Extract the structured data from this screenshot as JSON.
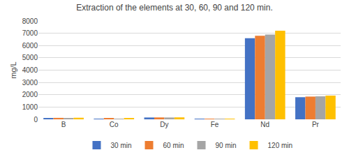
{
  "chart_data": {
    "type": "bar",
    "title": "Extraction of the elements at 30, 60, 90 and 120 min.",
    "categories": [
      "B",
      "Co",
      "Dy",
      "Fe",
      "Nd",
      "Pr"
    ],
    "series": [
      {
        "name": "30 min",
        "color": "#4472C4",
        "values": [
          100,
          50,
          150,
          2,
          6600,
          1800
        ]
      },
      {
        "name": "60 min",
        "color": "#ED7D31",
        "values": [
          120,
          60,
          155,
          2,
          6800,
          1850
        ]
      },
      {
        "name": "90 min",
        "color": "#A5A5A5",
        "values": [
          110,
          55,
          150,
          2,
          6900,
          1870
        ]
      },
      {
        "name": "120 min",
        "color": "#FFC000",
        "values": [
          130,
          65,
          160,
          2,
          7200,
          1930
        ]
      }
    ],
    "ylabel": "mg/L",
    "ylim": [
      0,
      8000
    ],
    "yticks": [
      0,
      1000,
      2000,
      3000,
      4000,
      5000,
      6000,
      7000,
      8000
    ],
    "grid": true,
    "legend": "bottom"
  }
}
